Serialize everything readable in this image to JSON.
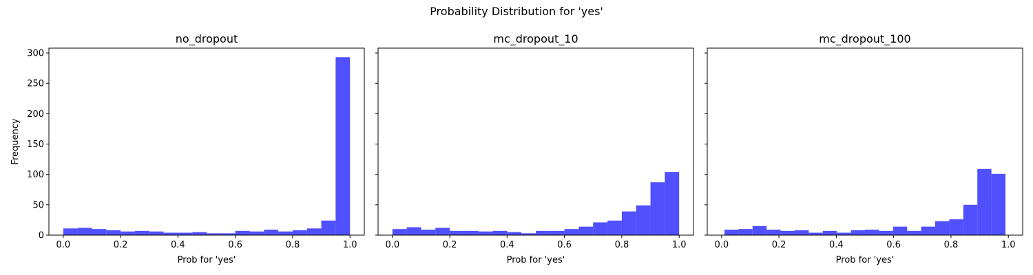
{
  "figure": {
    "suptitle": "Probability Distribution for 'yes'"
  },
  "chart_data": [
    {
      "type": "bar",
      "title": "no_dropout",
      "xlabel": "Prob for 'yes'",
      "ylabel": "Frequency",
      "xlim": [
        -0.05,
        1.05
      ],
      "ylim": [
        0,
        308
      ],
      "xticks": [
        0.0,
        0.2,
        0.4,
        0.6,
        0.8,
        1.0
      ],
      "xtick_labels": [
        "0.0",
        "0.2",
        "0.4",
        "0.6",
        "0.8",
        "1.0"
      ],
      "yticks": [
        0,
        50,
        100,
        150,
        200,
        250,
        300
      ],
      "ytick_labels": [
        "0",
        "50",
        "100",
        "150",
        "200",
        "250",
        "300"
      ],
      "bin_start": 0.0,
      "bin_width": 0.05,
      "values": [
        11,
        12,
        10,
        8,
        6,
        7,
        6,
        4,
        4,
        5,
        3,
        3,
        7,
        6,
        9,
        6,
        8,
        11,
        24,
        293
      ],
      "color": "#5050ff"
    },
    {
      "type": "bar",
      "title": "mc_dropout_10",
      "xlabel": "Prob for 'yes'",
      "ylabel": "",
      "xlim": [
        -0.05,
        1.05
      ],
      "ylim": [
        0,
        308
      ],
      "xticks": [
        0.0,
        0.2,
        0.4,
        0.6,
        0.8,
        1.0
      ],
      "xtick_labels": [
        "0.0",
        "0.2",
        "0.4",
        "0.6",
        "0.8",
        "1.0"
      ],
      "yticks": [
        0,
        50,
        100,
        150,
        200,
        250,
        300
      ],
      "ytick_labels": [],
      "bin_start": 0.0,
      "bin_width": 0.05,
      "values": [
        10,
        13,
        9,
        12,
        7,
        7,
        6,
        7,
        5,
        3,
        7,
        7,
        10,
        14,
        21,
        24,
        39,
        49,
        87,
        104
      ],
      "color": "#5050ff"
    },
    {
      "type": "bar",
      "title": "mc_dropout_100",
      "xlabel": "Prob for 'yes'",
      "ylabel": "",
      "xlim": [
        -0.05,
        1.05
      ],
      "ylim": [
        0,
        308
      ],
      "xticks": [
        0.0,
        0.2,
        0.4,
        0.6,
        0.8,
        1.0
      ],
      "xtick_labels": [
        "0.0",
        "0.2",
        "0.4",
        "0.6",
        "0.8",
        "1.0"
      ],
      "yticks": [
        0,
        50,
        100,
        150,
        200,
        250,
        300
      ],
      "ytick_labels": [],
      "bin_start": 0.01,
      "bin_width": 0.049,
      "values": [
        9,
        10,
        15,
        9,
        7,
        8,
        4,
        7,
        4,
        8,
        9,
        7,
        14,
        7,
        14,
        23,
        26,
        50,
        109,
        101
      ],
      "color": "#5050ff"
    }
  ]
}
